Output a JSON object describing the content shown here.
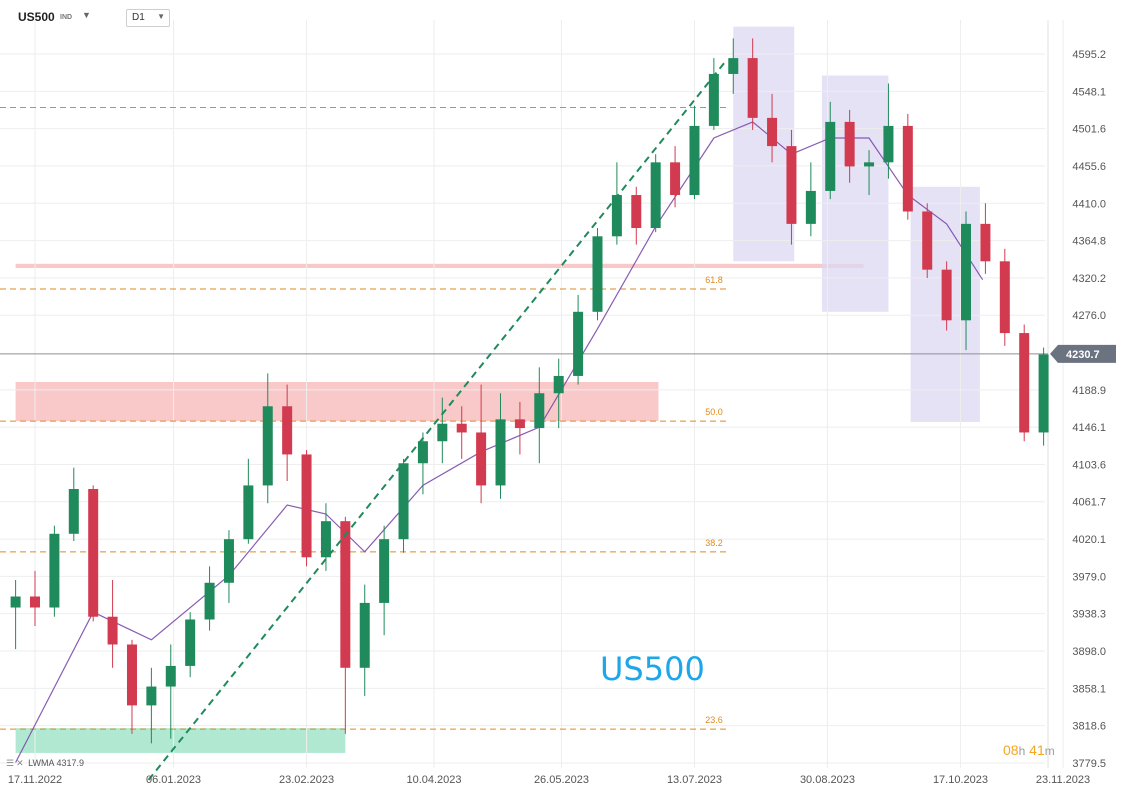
{
  "header": {
    "symbol": "US500",
    "symbol_suffix": "IND",
    "timeframe": "D1"
  },
  "watermark": "US500",
  "timer": {
    "hours": "08",
    "h_unit": "h",
    "minutes": "41",
    "m_unit": "m"
  },
  "indicator": {
    "label": "LWMA",
    "value": "4317.9"
  },
  "colors": {
    "bull": "#1f8a5b",
    "bear": "#d23a4f",
    "lwma": "#7b4aa8",
    "fib": "#e08a1e",
    "trendline": "#1f8a5b",
    "resistance_zone": "#f8c2c2",
    "support_zone": "#a8e6cc",
    "highlight_box": "#dcd8f2",
    "watermark": "#1ea7e8",
    "timer": "#f5a623"
  },
  "chart_data": {
    "type": "candlestick",
    "y_axis": {
      "ticks": [
        "4595.2",
        "4548.1",
        "4501.6",
        "4455.6",
        "4410.0",
        "4364.8",
        "4320.2",
        "4276.0",
        "4188.9",
        "4146.1",
        "4103.6",
        "4061.7",
        "4020.1",
        "3979.0",
        "3938.3",
        "3898.0",
        "3858.1",
        "3818.6",
        "3779.5"
      ],
      "range": [
        3760,
        4650
      ],
      "scale": "log"
    },
    "x_axis": {
      "ticks": [
        "17.11.2022",
        "06.01.2023",
        "23.02.2023",
        "10.04.2023",
        "26.05.2023",
        "13.07.2023",
        "30.08.2023",
        "17.10.2023",
        "23.11.2023"
      ]
    },
    "last_price": "4230.7",
    "fibonacci": [
      {
        "label": "23.6",
        "price": 3815
      },
      {
        "label": "38.2",
        "price": 4006
      },
      {
        "label": "50.0",
        "price": 4153
      },
      {
        "label": "61.8",
        "price": 4307
      },
      {
        "label": "",
        "price": 4528
      }
    ],
    "zones": [
      {
        "kind": "support",
        "low": 3790,
        "high": 3816,
        "from": "2022-11-10",
        "to": "2023-03-09"
      },
      {
        "kind": "resistance",
        "low": 4153,
        "high": 4198,
        "from": "2022-11-10",
        "to": "2023-06-30"
      },
      {
        "kind": "resistance",
        "low": 4332,
        "high": 4337,
        "from": "2022-11-10",
        "to": "2023-09-12"
      }
    ],
    "highlight_boxes": [
      {
        "from": "2023-07-27",
        "to": "2023-08-18",
        "low": 4340,
        "high": 4630
      },
      {
        "from": "2023-08-28",
        "to": "2023-09-21",
        "low": 4280,
        "high": 4568
      },
      {
        "from": "2023-09-29",
        "to": "2023-10-24",
        "low": 4152,
        "high": 4430
      }
    ],
    "trendline": [
      {
        "date": "2022-12-28",
        "price": 3762
      },
      {
        "date": "2023-07-24",
        "price": 4585
      }
    ],
    "lwma_series": [
      {
        "date": "2022-11-10",
        "price": 3780
      },
      {
        "date": "2022-12-08",
        "price": 3940
      },
      {
        "date": "2022-12-29",
        "price": 3910
      },
      {
        "date": "2023-01-26",
        "price": 3980
      },
      {
        "date": "2023-02-16",
        "price": 4058
      },
      {
        "date": "2023-03-02",
        "price": 4048
      },
      {
        "date": "2023-03-16",
        "price": 4006
      },
      {
        "date": "2023-04-06",
        "price": 4080
      },
      {
        "date": "2023-04-27",
        "price": 4118
      },
      {
        "date": "2023-05-18",
        "price": 4146
      },
      {
        "date": "2023-06-08",
        "price": 4260
      },
      {
        "date": "2023-06-29",
        "price": 4382
      },
      {
        "date": "2023-07-20",
        "price": 4490
      },
      {
        "date": "2023-08-03",
        "price": 4510
      },
      {
        "date": "2023-08-17",
        "price": 4470
      },
      {
        "date": "2023-08-31",
        "price": 4490
      },
      {
        "date": "2023-09-14",
        "price": 4490
      },
      {
        "date": "2023-09-28",
        "price": 4420
      },
      {
        "date": "2023-10-12",
        "price": 4385
      },
      {
        "date": "2023-10-25",
        "price": 4318
      }
    ],
    "candles": [
      {
        "date": "2022-11-10",
        "open": 3945,
        "high": 3975,
        "low": 3900,
        "close": 3957
      },
      {
        "date": "2022-11-17",
        "open": 3957,
        "high": 3985,
        "low": 3925,
        "close": 3945
      },
      {
        "date": "2022-11-24",
        "open": 3945,
        "high": 4035,
        "low": 3935,
        "close": 4026
      },
      {
        "date": "2022-12-01",
        "open": 4026,
        "high": 4100,
        "low": 4018,
        "close": 4076
      },
      {
        "date": "2022-12-08",
        "open": 4076,
        "high": 4080,
        "low": 3930,
        "close": 3935
      },
      {
        "date": "2022-12-15",
        "open": 3935,
        "high": 3975,
        "low": 3880,
        "close": 3905
      },
      {
        "date": "2022-12-22",
        "open": 3905,
        "high": 3910,
        "low": 3810,
        "close": 3840
      },
      {
        "date": "2022-12-29",
        "open": 3840,
        "high": 3880,
        "low": 3800,
        "close": 3860
      },
      {
        "date": "2023-01-05",
        "open": 3860,
        "high": 3905,
        "low": 3805,
        "close": 3882
      },
      {
        "date": "2023-01-12",
        "open": 3882,
        "high": 3940,
        "low": 3870,
        "close": 3932
      },
      {
        "date": "2023-01-19",
        "open": 3932,
        "high": 3990,
        "low": 3920,
        "close": 3972
      },
      {
        "date": "2023-01-26",
        "open": 3972,
        "high": 4030,
        "low": 3950,
        "close": 4020
      },
      {
        "date": "2023-02-02",
        "open": 4020,
        "high": 4110,
        "low": 4015,
        "close": 4080
      },
      {
        "date": "2023-02-09",
        "open": 4080,
        "high": 4208,
        "low": 4060,
        "close": 4170
      },
      {
        "date": "2023-02-16",
        "open": 4170,
        "high": 4195,
        "low": 4085,
        "close": 4115
      },
      {
        "date": "2023-02-23",
        "open": 4115,
        "high": 4120,
        "low": 3990,
        "close": 4000
      },
      {
        "date": "2023-03-02",
        "open": 4000,
        "high": 4060,
        "low": 3985,
        "close": 4040
      },
      {
        "date": "2023-03-09",
        "open": 4040,
        "high": 4045,
        "low": 3810,
        "close": 3880
      },
      {
        "date": "2023-03-16",
        "open": 3880,
        "high": 3970,
        "low": 3850,
        "close": 3950
      },
      {
        "date": "2023-03-23",
        "open": 3950,
        "high": 4035,
        "low": 3915,
        "close": 4020
      },
      {
        "date": "2023-03-30",
        "open": 4020,
        "high": 4110,
        "low": 4005,
        "close": 4105
      },
      {
        "date": "2023-04-06",
        "open": 4105,
        "high": 4140,
        "low": 4070,
        "close": 4130
      },
      {
        "date": "2023-04-13",
        "open": 4130,
        "high": 4180,
        "low": 4105,
        "close": 4150
      },
      {
        "date": "2023-04-20",
        "open": 4150,
        "high": 4170,
        "low": 4110,
        "close": 4140
      },
      {
        "date": "2023-04-27",
        "open": 4140,
        "high": 4195,
        "low": 4060,
        "close": 4080
      },
      {
        "date": "2023-05-04",
        "open": 4080,
        "high": 4185,
        "low": 4065,
        "close": 4155
      },
      {
        "date": "2023-05-11",
        "open": 4155,
        "high": 4175,
        "low": 4115,
        "close": 4145
      },
      {
        "date": "2023-05-18",
        "open": 4145,
        "high": 4215,
        "low": 4105,
        "close": 4185
      },
      {
        "date": "2023-05-25",
        "open": 4185,
        "high": 4225,
        "low": 4145,
        "close": 4205
      },
      {
        "date": "2023-06-01",
        "open": 4205,
        "high": 4300,
        "low": 4195,
        "close": 4280
      },
      {
        "date": "2023-06-08",
        "open": 4280,
        "high": 4380,
        "low": 4270,
        "close": 4370
      },
      {
        "date": "2023-06-15",
        "open": 4370,
        "high": 4460,
        "low": 4360,
        "close": 4420
      },
      {
        "date": "2023-06-22",
        "open": 4420,
        "high": 4430,
        "low": 4360,
        "close": 4380
      },
      {
        "date": "2023-06-29",
        "open": 4380,
        "high": 4470,
        "low": 4375,
        "close": 4460
      },
      {
        "date": "2023-07-06",
        "open": 4460,
        "high": 4480,
        "low": 4405,
        "close": 4420
      },
      {
        "date": "2023-07-13",
        "open": 4420,
        "high": 4530,
        "low": 4415,
        "close": 4505
      },
      {
        "date": "2023-07-20",
        "open": 4505,
        "high": 4590,
        "low": 4500,
        "close": 4570
      },
      {
        "date": "2023-07-27",
        "open": 4570,
        "high": 4615,
        "low": 4545,
        "close": 4590
      },
      {
        "date": "2023-08-03",
        "open": 4590,
        "high": 4615,
        "low": 4500,
        "close": 4515
      },
      {
        "date": "2023-08-10",
        "open": 4515,
        "high": 4545,
        "low": 4460,
        "close": 4480
      },
      {
        "date": "2023-08-17",
        "open": 4480,
        "high": 4500,
        "low": 4360,
        "close": 4385
      },
      {
        "date": "2023-08-24",
        "open": 4385,
        "high": 4460,
        "low": 4370,
        "close": 4425
      },
      {
        "date": "2023-08-31",
        "open": 4425,
        "high": 4535,
        "low": 4415,
        "close": 4510
      },
      {
        "date": "2023-09-07",
        "open": 4510,
        "high": 4525,
        "low": 4435,
        "close": 4455
      },
      {
        "date": "2023-09-14",
        "open": 4455,
        "high": 4475,
        "low": 4420,
        "close": 4460
      },
      {
        "date": "2023-09-21",
        "open": 4460,
        "high": 4558,
        "low": 4440,
        "close": 4505
      },
      {
        "date": "2023-09-28",
        "open": 4505,
        "high": 4520,
        "low": 4390,
        "close": 4400
      },
      {
        "date": "2023-10-05",
        "open": 4400,
        "high": 4410,
        "low": 4320,
        "close": 4330
      },
      {
        "date": "2023-10-12",
        "open": 4330,
        "high": 4340,
        "low": 4258,
        "close": 4270
      },
      {
        "date": "2023-10-19",
        "open": 4270,
        "high": 4400,
        "low": 4235,
        "close": 4385
      },
      {
        "date": "2023-10-26",
        "open": 4385,
        "high": 4410,
        "low": 4325,
        "close": 4340
      },
      {
        "date": "2023-11-02",
        "open": 4340,
        "high": 4355,
        "low": 4240,
        "close": 4255
      },
      {
        "date": "2023-11-09",
        "open": 4255,
        "high": 4265,
        "low": 4130,
        "close": 4140
      },
      {
        "date": "2023-11-16",
        "open": 4140,
        "high": 4238,
        "low": 4125,
        "close": 4230
      }
    ]
  }
}
